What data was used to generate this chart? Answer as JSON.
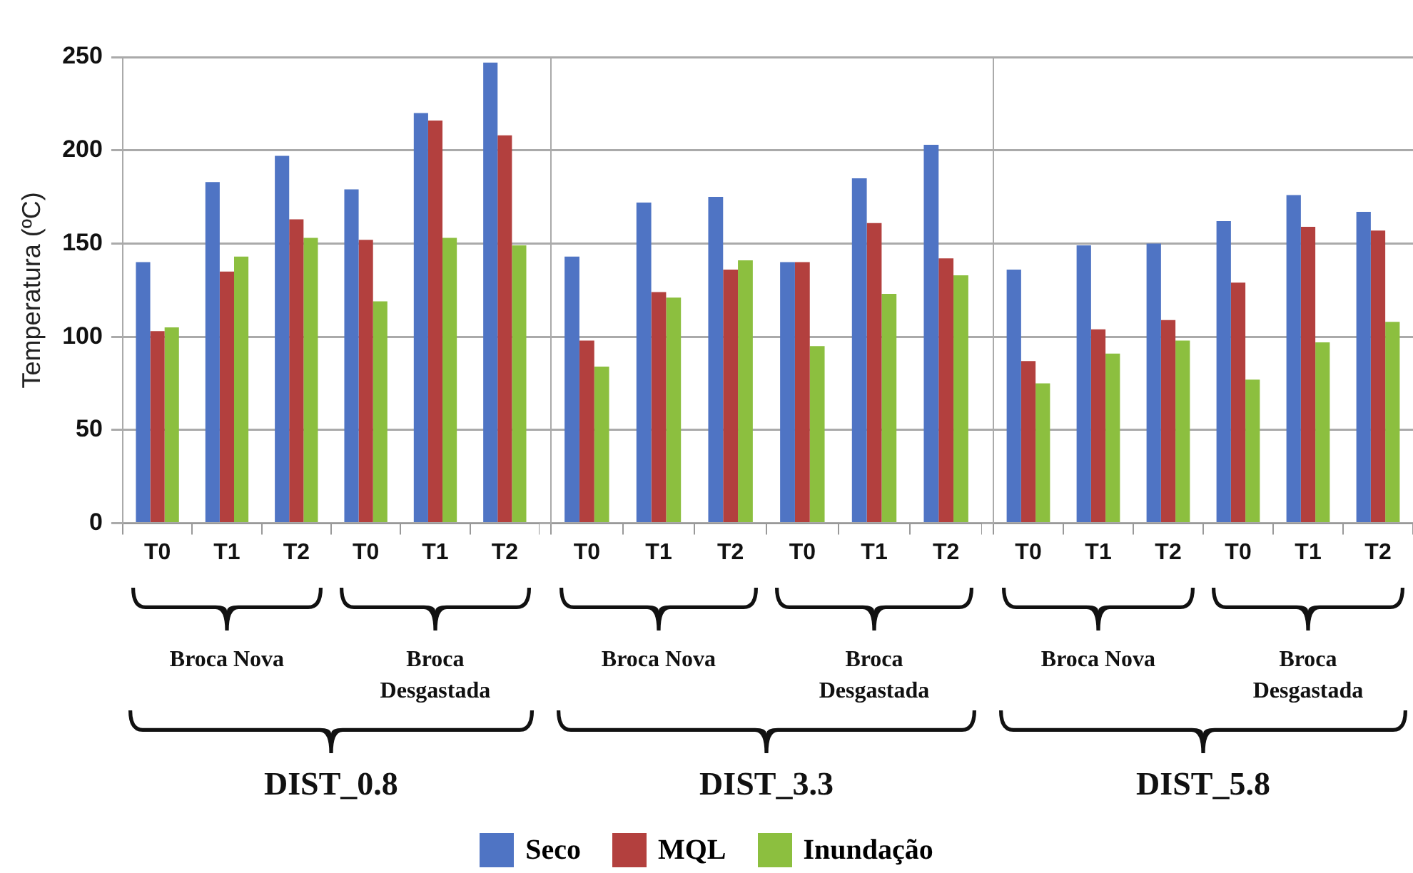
{
  "chart_data": [
    {
      "type": "bar",
      "xlabel": "DIST_0.8",
      "ylabel": "Temperatura (ºC)",
      "categories": [
        "T0",
        "T1",
        "T2",
        "T0",
        "T1",
        "T2"
      ],
      "ylim": [
        0,
        250
      ],
      "yticks": [
        0,
        50,
        100,
        150,
        200,
        250
      ],
      "grid": "y",
      "legend": "bottom",
      "annotations": [
        "Broca Nova",
        "Broca Desgastada"
      ],
      "series": [
        {
          "name": "Seco",
          "color": "#4f74c4",
          "values": [
            140,
            183,
            197,
            179,
            220,
            247
          ]
        },
        {
          "name": "MQL",
          "color": "#b3403e",
          "values": [
            103,
            135,
            163,
            152,
            216,
            208
          ]
        },
        {
          "name": "Inundação",
          "color": "#8cbf3f",
          "values": [
            105,
            143,
            153,
            119,
            153,
            149
          ]
        }
      ]
    },
    {
      "type": "bar",
      "xlabel": "DIST_3.3",
      "categories": [
        "T0",
        "T1",
        "T2",
        "T0",
        "T1",
        "T2"
      ],
      "ylim": [
        0,
        250
      ],
      "yticks": [
        0,
        50,
        100,
        150,
        200,
        250
      ],
      "grid": "y",
      "tick_labels": "x",
      "annotations": [
        "Broca Nova",
        "Broca Desgastada"
      ],
      "series": [
        {
          "color": "#4f74c4",
          "values": [
            143,
            172,
            175,
            140,
            185,
            203
          ]
        },
        {
          "color": "#b3403e",
          "values": [
            98,
            124,
            136,
            140,
            161,
            142
          ]
        },
        {
          "color": "#8cbf3f",
          "values": [
            84,
            121,
            141,
            95,
            123,
            133
          ]
        }
      ]
    },
    {
      "type": "bar",
      "xlabel": "DIST_5.8",
      "categories": [
        "T0",
        "T1",
        "T2",
        "T0",
        "T1",
        "T2"
      ],
      "ylim": [
        0,
        250
      ],
      "yticks": [
        0,
        50,
        100,
        150,
        200,
        250
      ],
      "grid": "y",
      "tick_labels": "x",
      "annotations": [
        "Broca Nova",
        "Broca Desgastada"
      ],
      "series": [
        {
          "color": "#4f74c4",
          "values": [
            136,
            149,
            150,
            162,
            176,
            167
          ]
        },
        {
          "color": "#b3403e",
          "values": [
            87,
            104,
            109,
            129,
            159,
            157
          ]
        },
        {
          "color": "#8cbf3f",
          "values": [
            75,
            91,
            98,
            77,
            97,
            108
          ]
        }
      ]
    }
  ]
}
